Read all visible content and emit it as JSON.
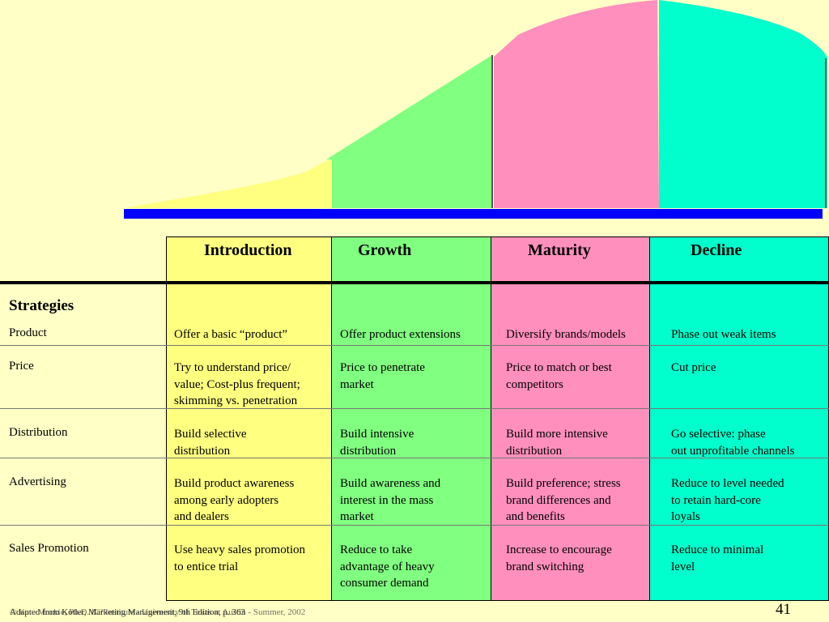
{
  "colors": {
    "background": "#ffffc6",
    "introduction": "#ffff80",
    "growth": "#80ff80",
    "maturity": "#ff8fbc",
    "decline": "#00ffcc",
    "axis_bar": "#0000ff"
  },
  "stages": [
    "Introduction",
    "Growth",
    "Maturity",
    "Decline"
  ],
  "strategies_heading": "Strategies",
  "rows": [
    {
      "label": "Product",
      "cells": [
        "Offer a basic “product”",
        "Offer product extensions",
        "Diversify brands/models",
        "Phase out weak items"
      ]
    },
    {
      "label": "Price",
      "cells": [
        "Try to understand price/\n value; Cost-plus frequent;\nskimming vs. penetration",
        "Price to penetrate\nmarket",
        "Price to match or best\ncompetitors",
        "Cut price"
      ]
    },
    {
      "label": "Distribution",
      "cells": [
        "Build selective\ndistribution",
        "Build intensive\ndistribution",
        "Build more intensive\ndistribution",
        "Go selective: phase\nout unprofitable channels"
      ]
    },
    {
      "label": "Advertising",
      "cells": [
        "Build product awareness\namong early adopters\nand dealers",
        "Build awareness and\ninterest in the mass\nmarket",
        "Build preference; stress\nbrand differences and\nand benefits",
        "Reduce to level needed\nto retain hard-core\nloyals"
      ]
    },
    {
      "label": "Sales Promotion",
      "cells": [
        "Use heavy sales promotion\nto entice trial",
        "Reduce to take\nadvantage of heavy\nconsumer demand",
        "Increase to encourage\nbrand switching",
        "Reduce to minimal\nlevel"
      ]
    }
  ],
  "footer_line1": "Adapted from Kotler, Marketing Management, 9th Edition, p. 363",
  "footer_line2": "© Kate Mackie, Ph.D.      IC² Institute - University of Texas at Austin - Summer, 2002",
  "page_number": "41"
}
